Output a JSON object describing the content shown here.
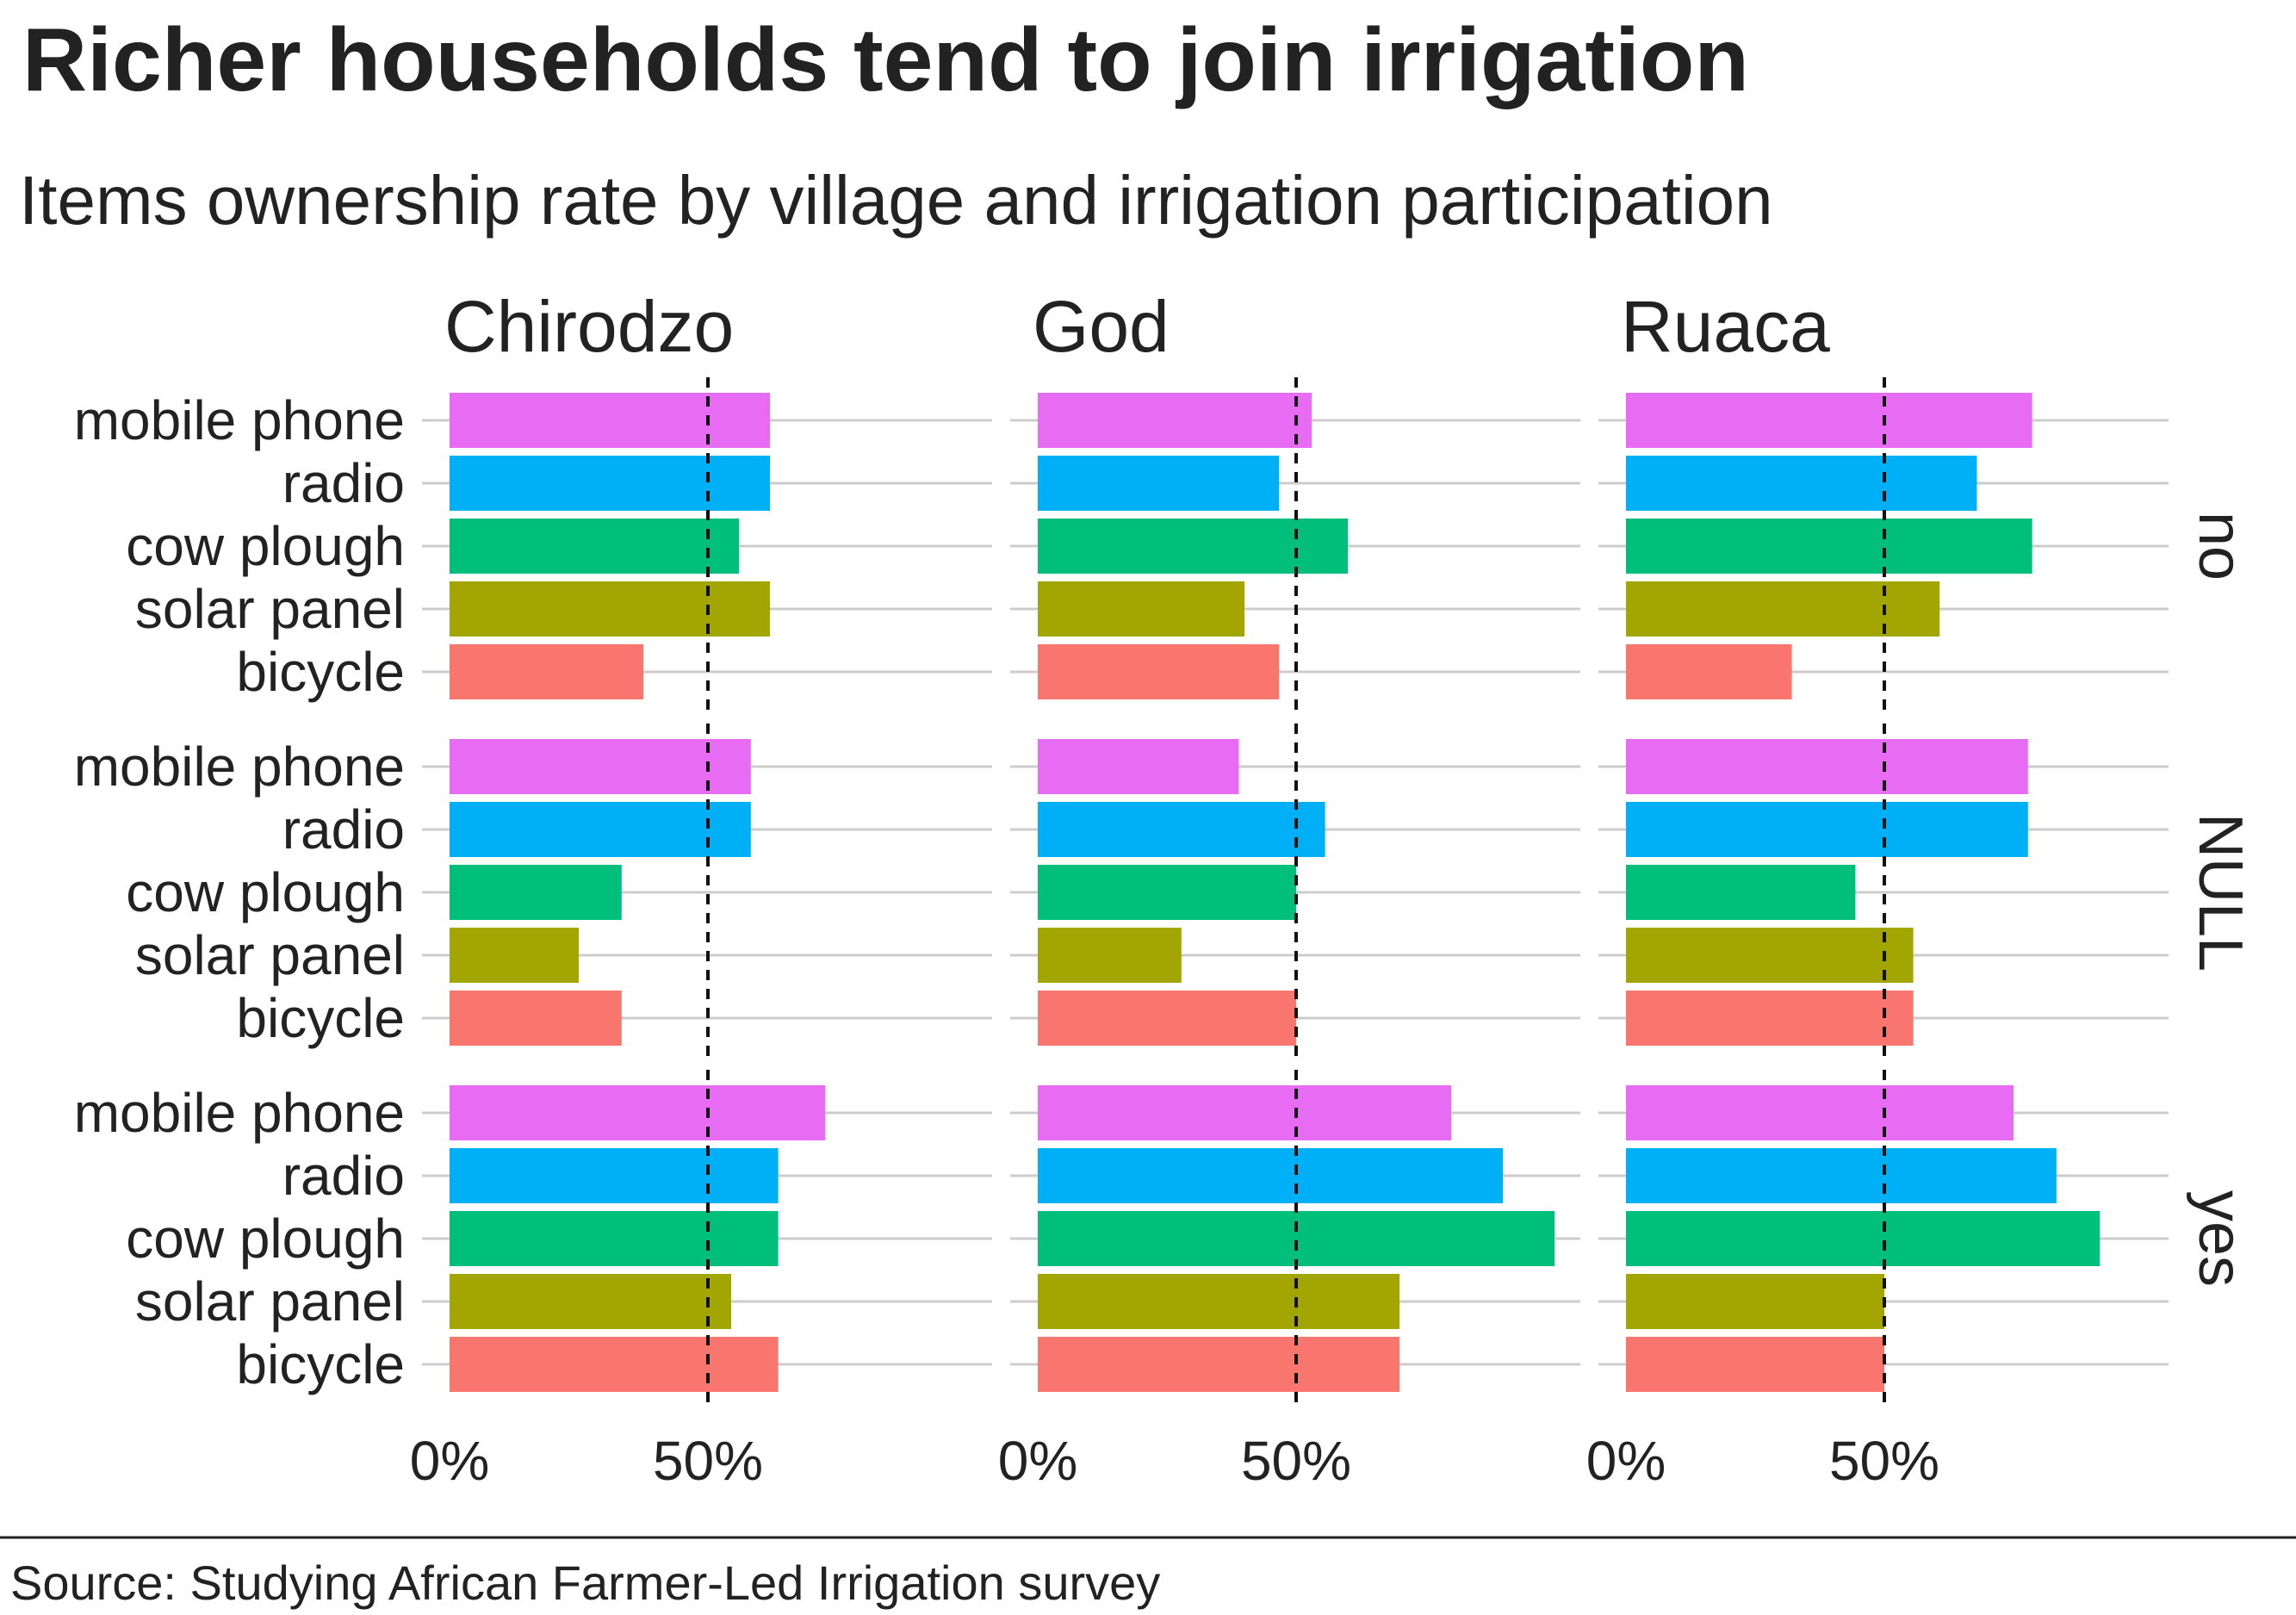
{
  "chart_data": {
    "type": "bar",
    "orientation": "horizontal",
    "title": "Richer households tend to join irrigation",
    "subtitle": "Items ownership rate by village and irrigation participation",
    "source": "Source: Studying African Farmer-Led Irrigation survey",
    "columns": [
      "Chirodzo",
      "God",
      "Ruaca"
    ],
    "rows": [
      "no",
      "NULL",
      "yes"
    ],
    "categories": [
      "mobile phone",
      "radio",
      "cow plough",
      "solar panel",
      "bicycle"
    ],
    "colors": {
      "mobile phone": "#E76BF3",
      "radio": "#00B0F6",
      "cow plough": "#00BF7D",
      "solar panel": "#A3A500",
      "bicycle": "#F8766D"
    },
    "reference_line": 0.5,
    "xlim": [
      0,
      1
    ],
    "x_ticks": [
      "0%",
      "50%"
    ],
    "grid": "horizontal major",
    "legend": "none",
    "values": {
      "no": {
        "Chirodzo": [
          0.62,
          0.62,
          0.56,
          0.62,
          0.375
        ],
        "God": [
          0.53,
          0.467,
          0.6,
          0.4,
          0.467
        ],
        "Ruaca": [
          0.786,
          0.679,
          0.786,
          0.607,
          0.321
        ]
      },
      "NULL": {
        "Chirodzo": [
          0.583,
          0.583,
          0.333,
          0.25,
          0.333
        ],
        "God": [
          0.389,
          0.556,
          0.5,
          0.278,
          0.5
        ],
        "Ruaca": [
          0.778,
          0.778,
          0.444,
          0.556,
          0.556
        ]
      },
      "yes": {
        "Chirodzo": [
          0.727,
          0.636,
          0.636,
          0.545,
          0.636
        ],
        "God": [
          0.8,
          0.9,
          1.0,
          0.7,
          0.7
        ],
        "Ruaca": [
          0.75,
          0.833,
          0.917,
          0.5,
          0.5
        ]
      }
    }
  }
}
